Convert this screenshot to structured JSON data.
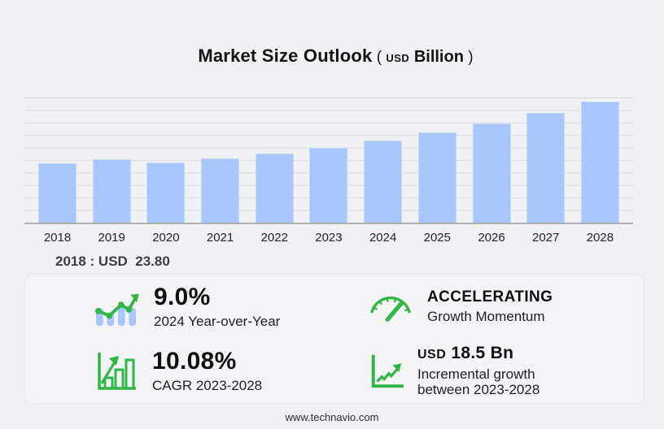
{
  "title": {
    "main": "Market Size Outlook",
    "open_paren": " ( ",
    "unit_prefix": "USD",
    "unit": " Billion",
    "close_paren": " )"
  },
  "chart_data": {
    "type": "bar",
    "title": "Market Size Outlook (USD Billion)",
    "categories": [
      "2018",
      "2019",
      "2020",
      "2021",
      "2022",
      "2023",
      "2024",
      "2025",
      "2026",
      "2027",
      "2028"
    ],
    "values": [
      23.8,
      25.3,
      24.0,
      25.5,
      27.7,
      30.0,
      32.7,
      35.9,
      39.5,
      43.7,
      48.5
    ],
    "xlabel": "",
    "ylabel": "",
    "ylim": [
      0,
      50
    ],
    "gridline_step": 5,
    "grid": true,
    "legend": false,
    "bar_color": "#a7c6f9",
    "annotation": "2018 : USD  23.80"
  },
  "base_note": "2018 : USD  23.80",
  "stats": [
    {
      "icon": "bars-trend-up-icon",
      "value": "9.0%",
      "label": "2024 Year-over-Year"
    },
    {
      "icon": "speedometer-icon",
      "value": "ACCELERATING",
      "label": "Growth Momentum"
    },
    {
      "icon": "bar-chart-arrow-icon",
      "value": "10.08%",
      "label": "CAGR 2023-2028"
    },
    {
      "icon": "line-chart-arrow-icon",
      "value_prefix": "USD",
      "value": "18.5 Bn",
      "label": "Incremental growth",
      "label2": "between 2023-2028"
    }
  ],
  "footer": {
    "url": "www.technavio.com"
  },
  "colors": {
    "background": "#f1f1f3",
    "bar_blue": "#a7c6f9",
    "accent_green": "#2eb744",
    "gridline": "#dcdcdf"
  }
}
